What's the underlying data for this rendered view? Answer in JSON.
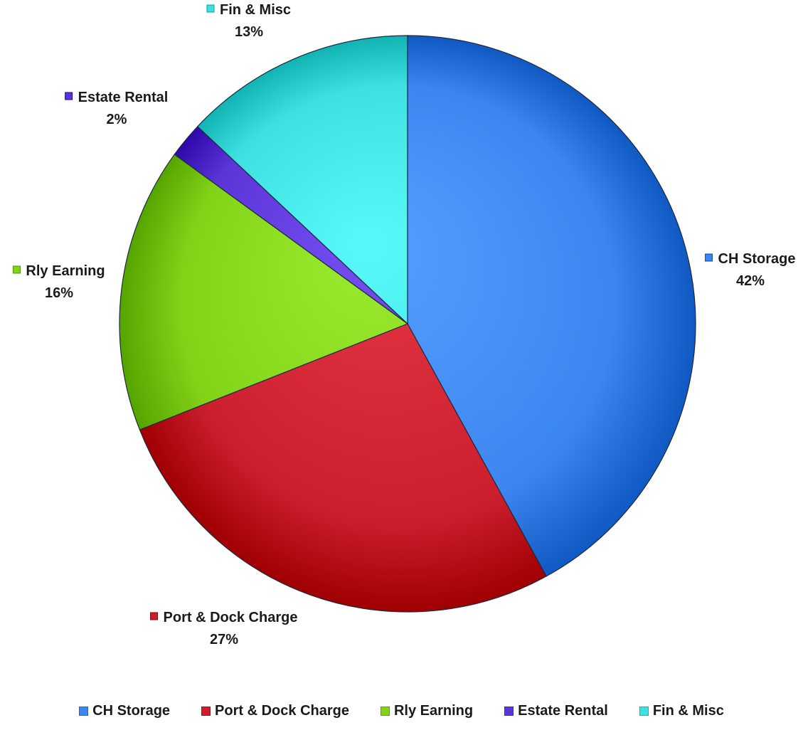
{
  "chart_data": {
    "type": "pie",
    "title": "",
    "slices": [
      {
        "label": "CH Storage",
        "value": 42,
        "display": "42%",
        "color": "#3d86f0",
        "label_anchor": "start"
      },
      {
        "label": "Port & Dock Charge",
        "value": 27,
        "display": "27%",
        "color": "#cc1f2e",
        "label_anchor": "middle"
      },
      {
        "label": "Rly Earning",
        "value": 16,
        "display": "16%",
        "color": "#82d218",
        "label_anchor": "middle"
      },
      {
        "label": "Estate Rental",
        "value": 2,
        "display": "2%",
        "color": "#5b35d8",
        "label_anchor": "middle"
      },
      {
        "label": "Fin & Misc",
        "value": 13,
        "display": "13%",
        "color": "#3fe0e0",
        "label_anchor": "middle"
      }
    ],
    "legend_position": "bottom",
    "start_angle_deg": 0,
    "direction": "clockwise"
  }
}
